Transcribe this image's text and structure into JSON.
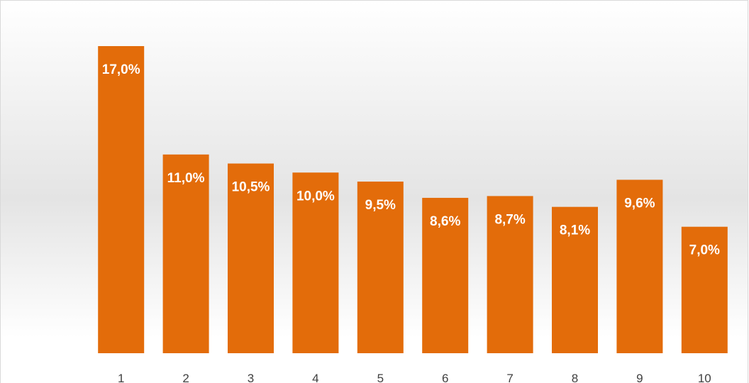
{
  "chart_data": {
    "type": "bar",
    "categories": [
      "1",
      "2",
      "3",
      "4",
      "5",
      "6",
      "7",
      "8",
      "9",
      "10"
    ],
    "values": [
      17.0,
      11.0,
      10.5,
      10.0,
      9.5,
      8.6,
      8.7,
      8.1,
      9.6,
      7.0
    ],
    "value_labels": [
      "17,0%",
      "11,0%",
      "10,5%",
      "10,0%",
      "9,5%",
      "8,6%",
      "8,7%",
      "8,1%",
      "9,6%",
      "7,0%"
    ],
    "color": "#e36c0a"
  }
}
